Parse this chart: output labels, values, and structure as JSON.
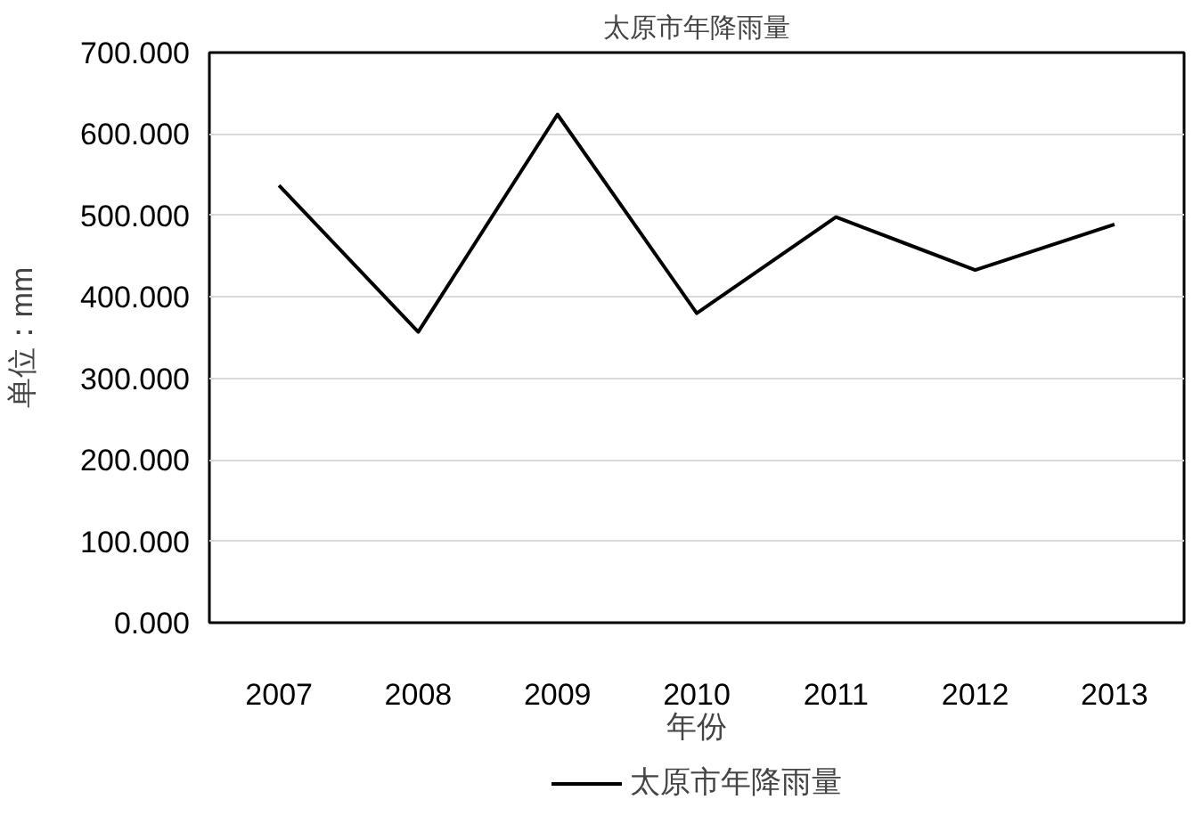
{
  "chart_data": {
    "type": "line",
    "title": "太原市年降雨量",
    "xlabel": "年份",
    "ylabel": "单位：mm",
    "categories": [
      "2007",
      "2008",
      "2009",
      "2010",
      "2011",
      "2012",
      "2013"
    ],
    "series": [
      {
        "name": "太原市年降雨量",
        "color": "#000000",
        "values": [
          537,
          357,
          624,
          380,
          498,
          433,
          489
        ]
      }
    ],
    "ylim": [
      0,
      700
    ],
    "yticks": [
      {
        "value": 0,
        "label": "0.000"
      },
      {
        "value": 100,
        "label": "100.000"
      },
      {
        "value": 200,
        "label": "200.000"
      },
      {
        "value": 300,
        "label": "300.000"
      },
      {
        "value": 400,
        "label": "400.000"
      },
      {
        "value": 500,
        "label": "500.000"
      },
      {
        "value": 600,
        "label": "600.000"
      },
      {
        "value": 700,
        "label": "700.000"
      }
    ],
    "grid": "y",
    "legend": "bottom",
    "marker": "none",
    "line_style": "solid"
  }
}
